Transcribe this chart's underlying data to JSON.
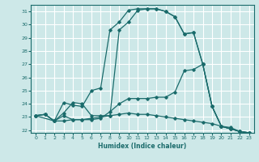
{
  "title": "",
  "xlabel": "Humidex (Indice chaleur)",
  "xlim": [
    -0.5,
    23.5
  ],
  "ylim": [
    21.8,
    31.5
  ],
  "yticks": [
    22,
    23,
    24,
    25,
    26,
    27,
    28,
    29,
    30,
    31
  ],
  "xticks": [
    0,
    1,
    2,
    3,
    4,
    5,
    6,
    7,
    8,
    9,
    10,
    11,
    12,
    13,
    14,
    15,
    16,
    17,
    18,
    19,
    20,
    21,
    22,
    23
  ],
  "bg_color": "#cde8e8",
  "grid_color": "#ffffff",
  "line_color": "#1a6b6b",
  "line1_x": [
    0,
    1,
    2,
    3,
    4,
    5,
    6,
    7,
    8,
    9,
    10,
    11,
    12,
    13,
    14,
    15,
    16,
    17,
    18,
    19,
    20,
    21,
    22,
    23
  ],
  "line1_y": [
    23.1,
    23.2,
    22.7,
    22.7,
    22.8,
    22.8,
    22.9,
    23.0,
    23.1,
    23.2,
    23.3,
    23.2,
    23.2,
    23.1,
    23.0,
    22.9,
    22.8,
    22.7,
    22.6,
    22.5,
    22.3,
    22.2,
    21.9,
    21.8
  ],
  "line2_x": [
    0,
    1,
    2,
    3,
    4,
    5,
    6,
    7,
    8,
    9,
    10,
    11,
    12,
    13,
    14,
    15,
    16,
    17,
    18,
    19,
    20,
    21,
    22,
    23
  ],
  "line2_y": [
    23.1,
    23.2,
    22.7,
    24.1,
    23.9,
    23.8,
    25.0,
    25.2,
    29.6,
    30.2,
    31.1,
    31.2,
    31.2,
    31.2,
    31.0,
    30.6,
    29.3,
    29.4,
    27.0,
    23.8,
    22.3,
    22.1,
    21.9,
    21.8
  ],
  "line3_x": [
    0,
    2,
    3,
    4,
    5,
    6,
    7,
    8,
    9,
    10,
    11,
    12,
    13,
    14,
    15,
    16,
    17,
    18,
    19,
    20,
    21,
    22,
    23
  ],
  "line3_y": [
    23.1,
    22.7,
    23.3,
    24.1,
    24.0,
    23.1,
    23.1,
    23.1,
    29.6,
    30.2,
    31.1,
    31.2,
    31.2,
    31.0,
    30.6,
    29.3,
    29.4,
    27.0,
    23.8,
    22.3,
    22.1,
    21.9,
    21.8
  ],
  "line4_x": [
    0,
    1,
    2,
    3,
    4,
    5,
    6,
    7,
    8,
    9,
    10,
    11,
    12,
    13,
    14,
    15,
    16,
    17,
    18,
    19,
    20,
    21,
    22,
    23
  ],
  "line4_y": [
    23.1,
    23.2,
    22.7,
    23.1,
    22.8,
    22.8,
    22.8,
    22.9,
    23.4,
    24.0,
    24.4,
    24.4,
    24.4,
    24.5,
    24.5,
    24.9,
    26.5,
    26.6,
    27.0,
    23.8,
    22.3,
    22.1,
    21.9,
    21.8
  ]
}
